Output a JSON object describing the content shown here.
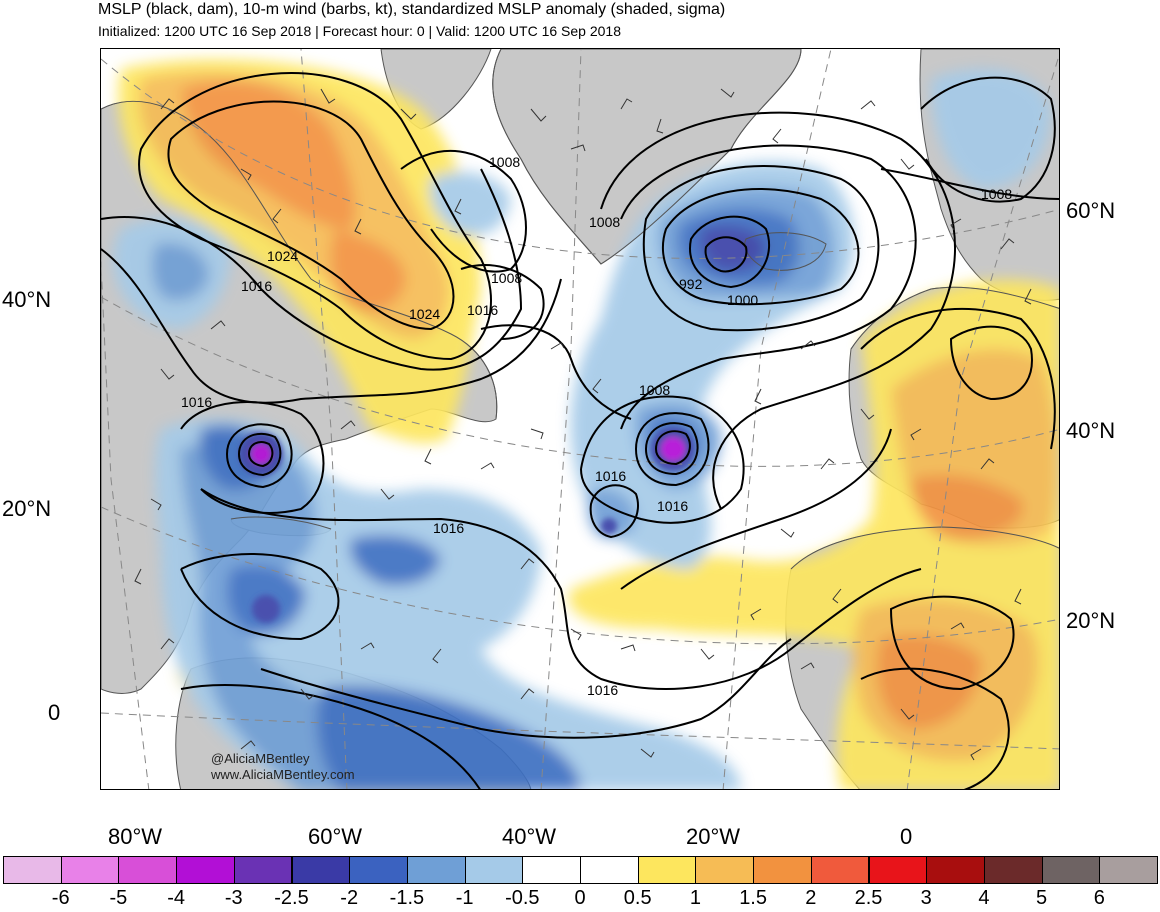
{
  "header": {
    "title": "MSLP (black, dam), 10-m wind (barbs, kt), standardized MSLP anomaly (shaded, sigma)",
    "subtitle": "Initialized: 1200 UTC 16 Sep 2018 | Forecast hour: 0 | Valid: 1200 UTC 16 Sep 2018"
  },
  "map": {
    "left_lat_labels": [
      "40°N",
      "20°N",
      "0"
    ],
    "right_lat_labels": [
      "60°N",
      "40°N",
      "20°N"
    ],
    "lon_labels": [
      "80°W",
      "60°W",
      "40°W",
      "20°W",
      "0"
    ],
    "contour_labels": [
      "1008",
      "1008",
      "1008",
      "1008",
      "1024",
      "1016",
      "1024",
      "1016",
      "992",
      "1000",
      "1008",
      "1016",
      "1016",
      "1016",
      "1016",
      "1016"
    ],
    "credit_lines": [
      "@AliciaMBentley",
      "www.AliciaMBentley.com"
    ],
    "colors": {
      "land": "#c8c8c8",
      "coast": "#555555",
      "contour": "#000000",
      "anom_pos_05": "#fde65e",
      "anom_pos_1": "#f6bc55",
      "anom_pos_15": "#f2923f",
      "anom_neg_05": "#a5cae8",
      "anom_neg_1": "#6f9fd6",
      "anom_neg_15": "#3d6fc2",
      "anom_neg_2": "#3a43a8",
      "anom_neg_25": "#5e2fae",
      "anom_neg_3": "#b20fd6"
    }
  },
  "colorbar": {
    "tick_labels": [
      "-6",
      "-5",
      "-4",
      "-3",
      "-2.5",
      "-2",
      "-1.5",
      "-1",
      "-0.5",
      "0",
      "0.5",
      "1",
      "1.5",
      "2",
      "2.5",
      "3",
      "4",
      "5",
      "6"
    ],
    "colors": [
      "#e8b9e8",
      "#e881e8",
      "#d84fd8",
      "#b20fd6",
      "#6a32b4",
      "#3a3aa6",
      "#3b62c0",
      "#6f9fd6",
      "#a5cae8",
      "#ffffff",
      "#ffffff",
      "#fde65e",
      "#f6bc55",
      "#f2923f",
      "#f05a3c",
      "#e8141a",
      "#a80e0e",
      "#6b2a2a",
      "#6e6363",
      "#a89e9e"
    ]
  }
}
